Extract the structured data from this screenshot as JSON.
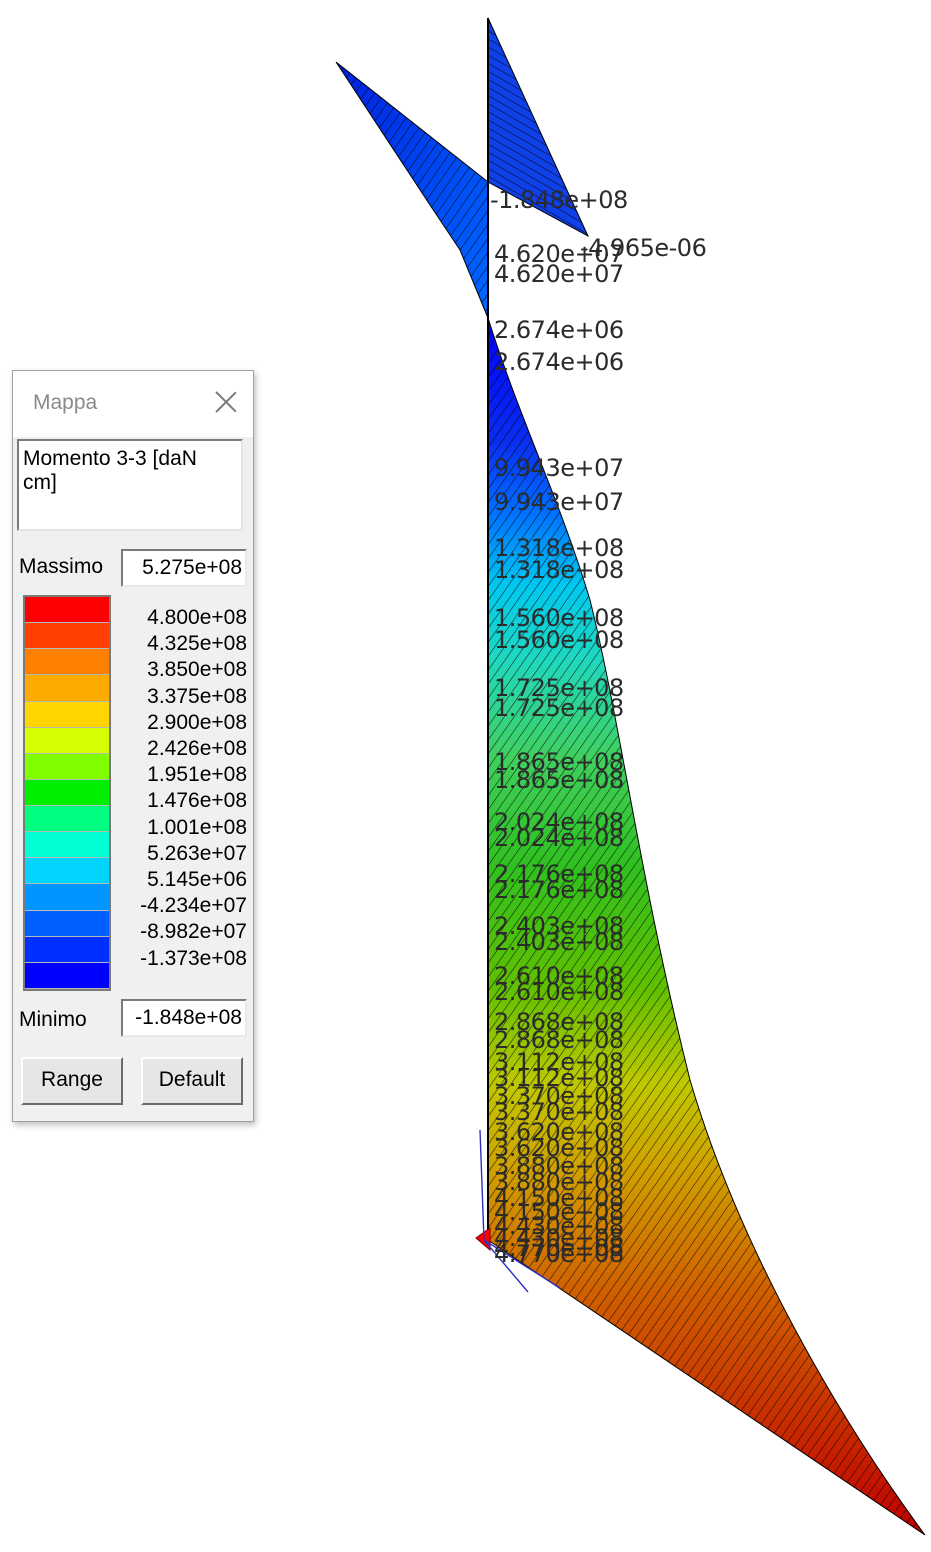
{
  "window": {
    "title": "Mappa",
    "close_icon": "close-icon"
  },
  "quantity": "Momento 3-3 [daN\ncm]",
  "maximum": {
    "label": "Massimo",
    "value": "5.275e+08"
  },
  "minimum": {
    "label": "Minimo",
    "value": "-1.848e+08"
  },
  "legend": [
    {
      "value": "4.800e+08",
      "color": "#ff0000"
    },
    {
      "value": "4.325e+08",
      "color": "#ff4000"
    },
    {
      "value": "3.850e+08",
      "color": "#ff8000"
    },
    {
      "value": "3.375e+08",
      "color": "#ffaa00"
    },
    {
      "value": "2.900e+08",
      "color": "#ffd500"
    },
    {
      "value": "2.426e+08",
      "color": "#d4ff00"
    },
    {
      "value": "1.951e+08",
      "color": "#80ff00"
    },
    {
      "value": "1.476e+08",
      "color": "#00ee00"
    },
    {
      "value": "1.001e+08",
      "color": "#00ff80"
    },
    {
      "value": "5.263e+07",
      "color": "#00ffd5"
    },
    {
      "value": "5.145e+06",
      "color": "#00d4ff"
    },
    {
      "value": "-4.234e+07",
      "color": "#0095ff"
    },
    {
      "value": "-8.982e+07",
      "color": "#0060ff"
    },
    {
      "value": "-1.373e+08",
      "color": "#0030ff"
    },
    {
      "value": "",
      "color": "#0000ff"
    }
  ],
  "buttons": {
    "range": "Range",
    "default": "Default"
  },
  "diagram_labels": [
    "-1.848e+08",
    "-4.965e-06",
    "4.620e+07",
    "4.620e+07",
    "2.674e+06",
    "2.674e+06",
    "9.943e+07",
    "9.943e+07",
    "1.318e+08",
    "1.318e+08",
    "1.560e+08",
    "1.560e+08",
    "1.725e+08",
    "1.725e+08",
    "1.865e+08",
    "1.865e+08",
    "2.024e+08",
    "2.024e+08",
    "2.176e+08",
    "2.176e+08",
    "2.403e+08",
    "2.403e+08",
    "2.610e+08",
    "2.610e+08",
    "2.868e+08",
    "2.868e+08",
    "3.112e+08",
    "3.112e+08",
    "3.370e+08",
    "3.370e+08",
    "3.620e+08",
    "3.620e+08",
    "3.880e+08",
    "3.880e+08",
    "4.150e+08",
    "4.150e+08",
    "4.430e+08",
    "4.430e+08",
    "4.770e+08",
    "4.770e+08"
  ]
}
